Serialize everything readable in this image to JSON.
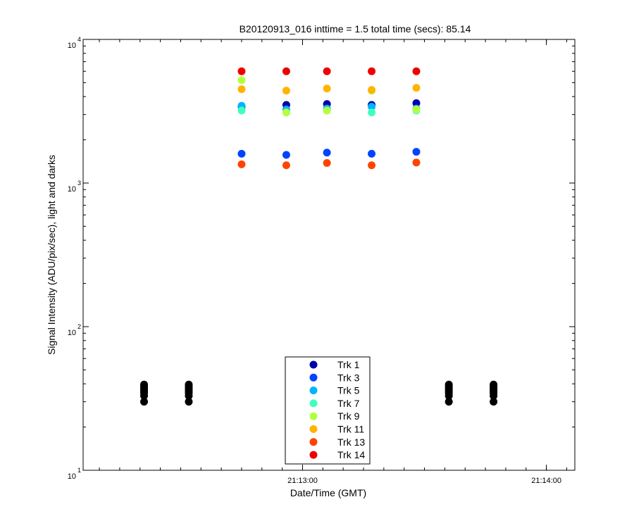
{
  "chart_data": {
    "type": "scatter",
    "title": "B20120913_016 inttime = 1.5 total time (secs): 85.14",
    "xlabel": "Date/Time (GMT)",
    "ylabel": "Signal Intensity (ADU/pix/sec), light and darks",
    "y_scale": "log",
    "ylim": [
      10,
      10000
    ],
    "xlim": [
      "21:12:06",
      "21:14:07"
    ],
    "x_ticks": [
      "21:13:00",
      "21:14:00"
    ],
    "y_ticks": [
      {
        "value": 10,
        "base": "10",
        "exp": "1"
      },
      {
        "value": 100,
        "base": "10",
        "exp": "2"
      },
      {
        "value": 1000,
        "base": "10",
        "exp": "3"
      },
      {
        "value": 10000,
        "base": "10",
        "exp": "4"
      }
    ],
    "grid": false,
    "legend_position": "bottom-center",
    "light_times": [
      "21:12:45",
      "21:12:56",
      "21:13:06",
      "21:13:17",
      "21:13:28"
    ],
    "series": [
      {
        "name": "Trk 1",
        "color": "#0000aa",
        "values": [
          3400,
          3500,
          3550,
          3500,
          3600
        ]
      },
      {
        "name": "Trk 3",
        "color": "#0044ff",
        "values": [
          1600,
          1570,
          1630,
          1600,
          1650
        ]
      },
      {
        "name": "Trk 5",
        "color": "#00b4ff",
        "values": [
          3450,
          3250,
          3300,
          3400,
          3300
        ]
      },
      {
        "name": "Trk 7",
        "color": "#40ffc0",
        "values": [
          3200,
          3100,
          3200,
          3100,
          3200
        ]
      },
      {
        "name": "Trk 9",
        "color": "#b4ff40",
        "values": [
          5200,
          3100,
          3200,
          4400,
          3250
        ]
      },
      {
        "name": "Trk 11",
        "color": "#ffb400",
        "values": [
          4500,
          4400,
          4550,
          4450,
          4600
        ]
      },
      {
        "name": "Trk 13",
        "color": "#ff4400",
        "values": [
          1350,
          1330,
          1380,
          1330,
          1390
        ]
      },
      {
        "name": "Trk 14",
        "color": "#ee0000",
        "values": [
          6000,
          6000,
          6000,
          6000,
          6000
        ]
      }
    ],
    "darks": {
      "color": "#000000",
      "times": [
        "21:12:21",
        "21:12:32",
        "21:13:36",
        "21:13:47"
      ],
      "values": [
        30,
        33,
        34.5,
        35.5,
        36.5,
        37.5,
        38.5,
        39.5
      ]
    }
  }
}
